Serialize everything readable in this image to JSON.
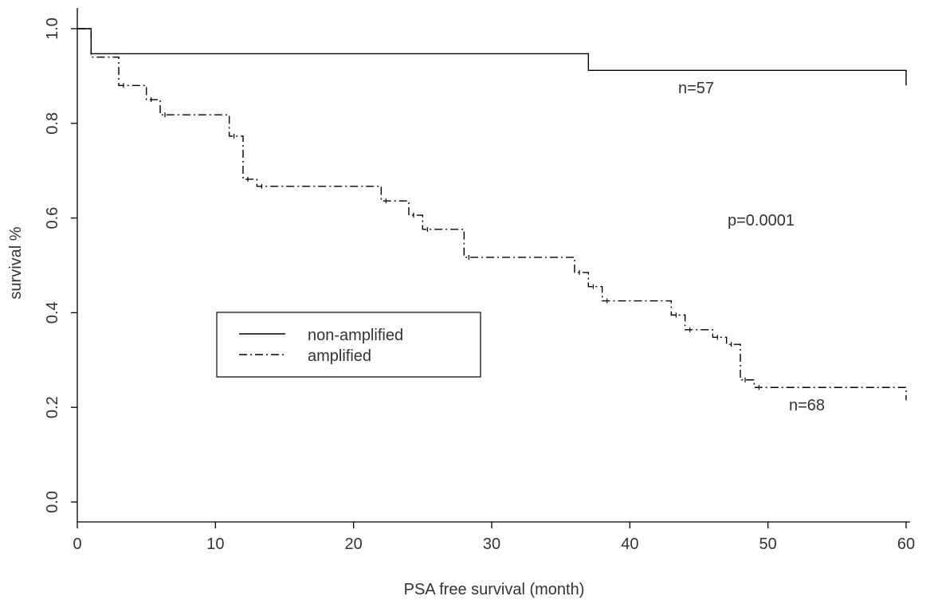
{
  "chart_data": {
    "type": "line",
    "xlabel": "PSA free survival (month)",
    "ylabel": "survival %",
    "xlim": [
      0,
      60
    ],
    "ylim": [
      0.0,
      1.0
    ],
    "x_ticks": [
      "0",
      "10",
      "20",
      "30",
      "40",
      "50",
      "60"
    ],
    "y_ticks": [
      "0.0",
      "0.2",
      "0.4",
      "0.6",
      "0.8",
      "1.0"
    ],
    "grid": false,
    "legend_position": "center-left",
    "annotations": {
      "n_non_amplified": "n=57",
      "n_amplified": "n=68",
      "p_value": "p=0.0001"
    },
    "series": [
      {
        "name": "non-amplified",
        "style": "solid",
        "x": [
          0,
          1,
          37,
          60
        ],
        "y": [
          1.0,
          0.947,
          0.912,
          0.88
        ]
      },
      {
        "name": "amplified",
        "style": "dash-dot",
        "x": [
          0,
          1,
          3,
          5,
          6,
          11,
          12,
          13,
          22,
          24,
          25,
          28,
          36,
          37,
          38,
          43,
          44,
          46,
          47,
          48,
          49,
          60
        ],
        "y": [
          1.0,
          0.94,
          0.88,
          0.85,
          0.818,
          0.773,
          0.682,
          0.667,
          0.636,
          0.606,
          0.576,
          0.517,
          0.485,
          0.455,
          0.425,
          0.395,
          0.364,
          0.348,
          0.333,
          0.258,
          0.242,
          0.215
        ]
      }
    ]
  }
}
